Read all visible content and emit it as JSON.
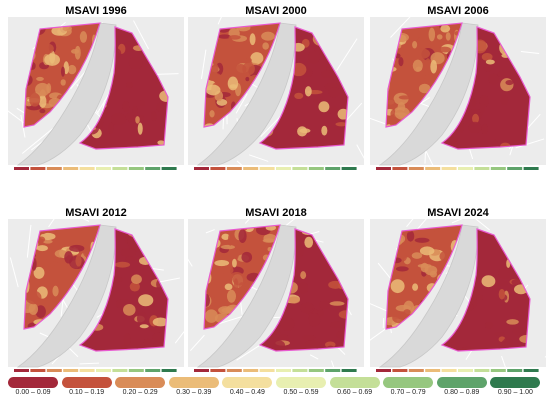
{
  "figure": {
    "panels": [
      {
        "title": "MSAVI 1996"
      },
      {
        "title": "MSAVI 2000"
      },
      {
        "title": "MSAVI 2006"
      },
      {
        "title": "MSAVI 2012"
      },
      {
        "title": "MSAVI 2018"
      },
      {
        "title": "MSAVI 2024"
      }
    ],
    "legend": [
      {
        "label": "0.00 – 0.09",
        "color": "#a3283a"
      },
      {
        "label": "0.10 – 0.19",
        "color": "#c4523c"
      },
      {
        "label": "0.20 – 0.29",
        "color": "#d98c58"
      },
      {
        "label": "0.30 – 0.39",
        "color": "#ebbc78"
      },
      {
        "label": "0.40 – 0.49",
        "color": "#f4df9e"
      },
      {
        "label": "0.50 – 0.59",
        "color": "#e8efb1"
      },
      {
        "label": "0.60 – 0.69",
        "color": "#c4df98"
      },
      {
        "label": "0.70 – 0.79",
        "color": "#96c77f"
      },
      {
        "label": "0.80 – 0.89",
        "color": "#5ea36a"
      },
      {
        "label": "0.90 – 1.00",
        "color": "#2f7a4e"
      }
    ],
    "colors": {
      "background_map": "#ececec",
      "river": "#d9d9d9",
      "boundary": "#e85ad0"
    }
  }
}
